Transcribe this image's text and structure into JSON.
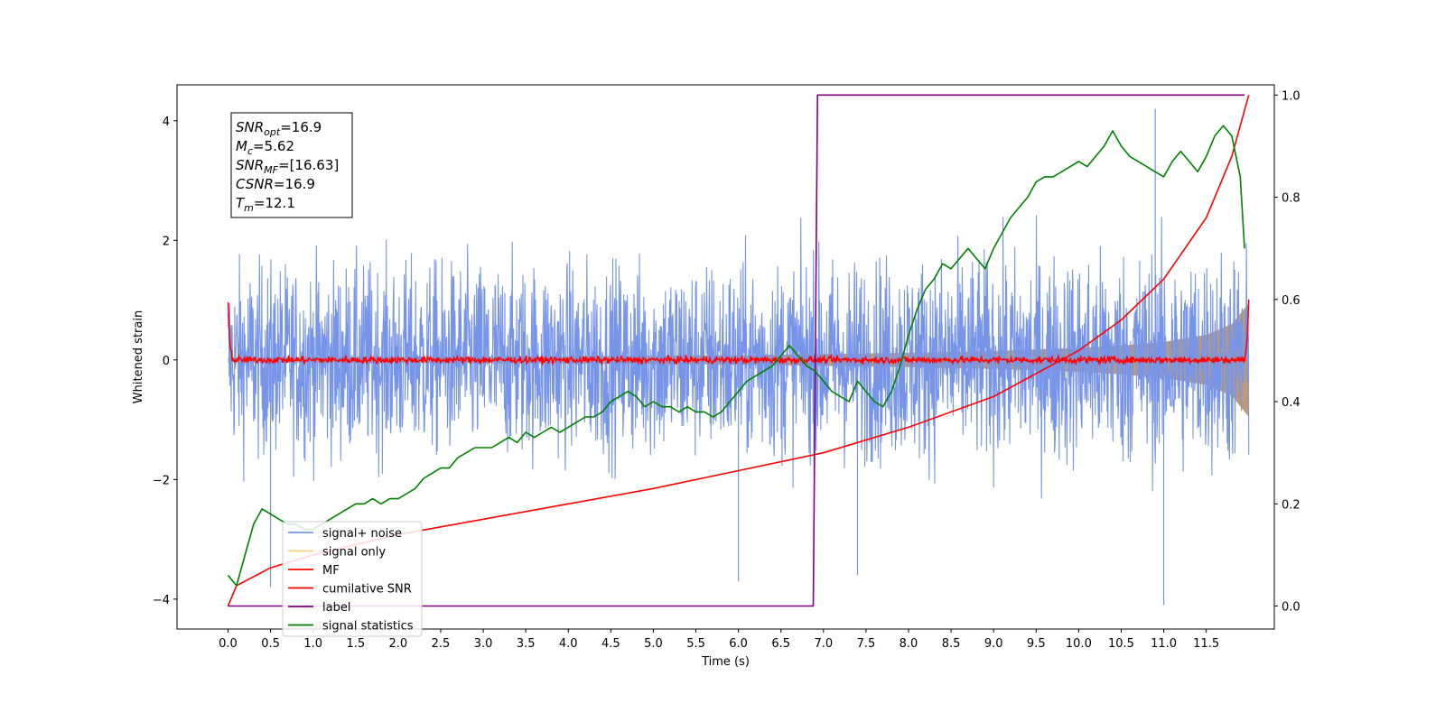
{
  "chart_data": {
    "type": "line",
    "title": "",
    "xlabel": "Time (s)",
    "ylabel": "Whitened strain",
    "xlim": [
      -0.6,
      12.3
    ],
    "ylim": [
      -4.5,
      4.6
    ],
    "y2lim": [
      -0.045,
      1.02
    ],
    "grid": false,
    "legend_placement": "lower-left",
    "x_ticks": [
      0.0,
      0.5,
      1.0,
      1.5,
      2.0,
      2.5,
      3.0,
      3.5,
      4.0,
      4.5,
      5.0,
      5.5,
      6.0,
      6.5,
      7.0,
      7.5,
      8.0,
      8.5,
      9.0,
      9.5,
      10.0,
      10.5,
      11.0,
      11.5
    ],
    "x_tick_labels": [
      "0.0",
      "0.5",
      "1.0",
      "1.5",
      "2.0",
      "2.5",
      "3.0",
      "3.5",
      "4.0",
      "4.5",
      "5.0",
      "5.5",
      "6.0",
      "6.5",
      "7.0",
      "7.5",
      "8.0",
      "8.5",
      "9.0",
      "9.5",
      "10.0",
      "10.5",
      "11.0",
      "11.5"
    ],
    "y_ticks": [
      -4,
      -2,
      0,
      2,
      4
    ],
    "y_tick_labels": [
      "−4",
      "−2",
      "0",
      "2",
      "4"
    ],
    "y2_ticks": [
      0.0,
      0.2,
      0.4,
      0.6,
      0.8,
      1.0
    ],
    "y2_tick_labels": [
      "0.0",
      "0.2",
      "0.4",
      "0.6",
      "0.8",
      "1.0"
    ],
    "annotation": [
      {
        "sym": "SNR",
        "sub": "opt",
        "val": "=16.9"
      },
      {
        "sym": "M",
        "sub": "c",
        "val": "=5.62"
      },
      {
        "sym": "SNR",
        "sub": "MF",
        "val": "=[16.63]"
      },
      {
        "sym": "CSNR",
        "sub": "",
        "val": "=16.9"
      },
      {
        "sym": "T",
        "sub": "m",
        "val": "=12.1"
      }
    ],
    "series": [
      {
        "name": "signal+ noise",
        "color": "#7795e8",
        "axis": "left",
        "kind": "noise-band",
        "x_range": [
          0.0,
          12.0
        ],
        "amplitude_envelope": [
          [
            0.0,
            2.5
          ],
          [
            6.0,
            2.6
          ],
          [
            12.0,
            2.9
          ]
        ],
        "outlier_peaks": [
          [
            10.9,
            4.2
          ],
          [
            11.0,
            -4.1
          ],
          [
            0.5,
            -3.8
          ],
          [
            6.0,
            -3.7
          ],
          [
            7.4,
            -3.6
          ]
        ]
      },
      {
        "name": "signal only",
        "color": "#f5d37a",
        "axis": "left",
        "kind": "chirp-envelope",
        "x": [
          0.0,
          2.0,
          4.0,
          6.0,
          7.0,
          8.0,
          9.0,
          10.0,
          10.5,
          11.0,
          11.5,
          11.8,
          12.0
        ],
        "envelope": [
          0.04,
          0.05,
          0.06,
          0.08,
          0.1,
          0.12,
          0.15,
          0.2,
          0.24,
          0.3,
          0.42,
          0.6,
          0.95
        ]
      },
      {
        "name": "MF",
        "color": "#ff0000",
        "axis": "left",
        "kind": "noisy-flat",
        "x": [
          0.0,
          0.02,
          0.05,
          11.95,
          11.98,
          12.0
        ],
        "y": [
          1.0,
          0.3,
          0.0,
          0.0,
          0.3,
          1.0
        ],
        "noise_amplitude": 0.08
      },
      {
        "name": "cumilative SNR",
        "color": "#ff0000",
        "axis": "right",
        "x": [
          0.0,
          0.1,
          0.5,
          1.0,
          2.0,
          3.0,
          4.0,
          5.0,
          6.0,
          7.0,
          8.0,
          9.0,
          10.0,
          10.5,
          11.0,
          11.5,
          11.8,
          12.0
        ],
        "y": [
          0.0,
          0.04,
          0.075,
          0.1,
          0.14,
          0.17,
          0.2,
          0.23,
          0.265,
          0.3,
          0.35,
          0.41,
          0.5,
          0.56,
          0.64,
          0.76,
          0.88,
          1.0
        ]
      },
      {
        "name": "label",
        "color": "#800080",
        "axis": "right",
        "x": [
          0.0,
          6.88,
          6.93,
          11.95
        ],
        "y": [
          0.0,
          0.0,
          1.0,
          1.0
        ]
      },
      {
        "name": "signal statistics",
        "color": "#008000",
        "axis": "right",
        "x": [
          0.0,
          0.1,
          0.2,
          0.3,
          0.4,
          0.5,
          0.6,
          0.7,
          0.8,
          0.9,
          1.0,
          1.1,
          1.2,
          1.3,
          1.4,
          1.5,
          1.6,
          1.7,
          1.8,
          1.9,
          2.0,
          2.1,
          2.2,
          2.3,
          2.4,
          2.5,
          2.6,
          2.7,
          2.8,
          2.9,
          3.0,
          3.1,
          3.2,
          3.3,
          3.4,
          3.5,
          3.6,
          3.7,
          3.8,
          3.9,
          4.0,
          4.1,
          4.2,
          4.3,
          4.4,
          4.5,
          4.6,
          4.7,
          4.8,
          4.9,
          5.0,
          5.1,
          5.2,
          5.3,
          5.4,
          5.5,
          5.6,
          5.7,
          5.8,
          5.9,
          6.0,
          6.1,
          6.2,
          6.3,
          6.4,
          6.5,
          6.6,
          6.7,
          6.8,
          6.9,
          7.0,
          7.1,
          7.2,
          7.3,
          7.4,
          7.5,
          7.6,
          7.7,
          7.8,
          7.9,
          8.0,
          8.1,
          8.2,
          8.3,
          8.4,
          8.5,
          8.6,
          8.7,
          8.8,
          8.9,
          9.0,
          9.1,
          9.2,
          9.3,
          9.4,
          9.5,
          9.6,
          9.7,
          9.8,
          9.9,
          10.0,
          10.1,
          10.2,
          10.3,
          10.4,
          10.5,
          10.6,
          10.7,
          10.8,
          10.9,
          11.0,
          11.1,
          11.2,
          11.3,
          11.4,
          11.5,
          11.6,
          11.7,
          11.8,
          11.9,
          11.95
        ],
        "y": [
          0.06,
          0.04,
          0.1,
          0.16,
          0.19,
          0.18,
          0.17,
          0.16,
          0.16,
          0.15,
          0.15,
          0.16,
          0.17,
          0.18,
          0.19,
          0.2,
          0.2,
          0.21,
          0.2,
          0.21,
          0.21,
          0.22,
          0.23,
          0.25,
          0.26,
          0.27,
          0.27,
          0.29,
          0.3,
          0.31,
          0.31,
          0.31,
          0.32,
          0.33,
          0.32,
          0.34,
          0.33,
          0.34,
          0.35,
          0.34,
          0.35,
          0.36,
          0.37,
          0.37,
          0.38,
          0.4,
          0.41,
          0.42,
          0.41,
          0.39,
          0.4,
          0.39,
          0.39,
          0.38,
          0.39,
          0.38,
          0.38,
          0.37,
          0.38,
          0.4,
          0.42,
          0.44,
          0.45,
          0.46,
          0.47,
          0.49,
          0.51,
          0.49,
          0.47,
          0.46,
          0.44,
          0.42,
          0.41,
          0.4,
          0.44,
          0.42,
          0.4,
          0.39,
          0.42,
          0.47,
          0.53,
          0.58,
          0.62,
          0.64,
          0.67,
          0.66,
          0.68,
          0.7,
          0.68,
          0.66,
          0.7,
          0.73,
          0.76,
          0.78,
          0.8,
          0.83,
          0.84,
          0.84,
          0.85,
          0.86,
          0.87,
          0.86,
          0.88,
          0.9,
          0.93,
          0.9,
          0.88,
          0.87,
          0.86,
          0.85,
          0.84,
          0.87,
          0.89,
          0.87,
          0.85,
          0.88,
          0.92,
          0.94,
          0.92,
          0.84,
          0.7
        ]
      }
    ]
  }
}
